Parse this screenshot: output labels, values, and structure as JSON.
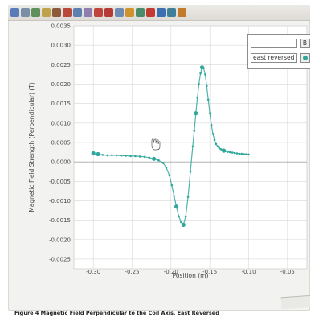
{
  "toolbar": {
    "buttons": [
      {
        "icon": "file-icon",
        "color": "#5b7bb8"
      },
      {
        "icon": "table-icon",
        "color": "#7a8fa6"
      },
      {
        "icon": "graph-icon",
        "color": "#5f8f5a"
      },
      {
        "icon": "sensor-icon",
        "color": "#c0a24a"
      },
      {
        "icon": "sigma-icon",
        "color": "#8a5a3a"
      },
      {
        "icon": "triangle-icon",
        "color": "#b8493b"
      },
      {
        "icon": "scale-icon",
        "color": "#5c7fb0"
      },
      {
        "icon": "zoom-icon",
        "color": "#8f7db0"
      },
      {
        "icon": "cursor-icon",
        "color": "#c0443b"
      },
      {
        "icon": "text-a-icon",
        "color": "#b53a34"
      },
      {
        "icon": "curve-fit-icon",
        "color": "#6c8bb5"
      },
      {
        "icon": "tangent-icon",
        "color": "#d0922d"
      },
      {
        "icon": "integral-icon",
        "color": "#4c8b6a"
      },
      {
        "icon": "delete-icon",
        "color": "#c23b32"
      },
      {
        "icon": "stats-icon",
        "color": "#3c6fb0"
      },
      {
        "icon": "grid-icon",
        "color": "#3f7f9a"
      },
      {
        "icon": "settings-icon",
        "color": "#c47a2b"
      }
    ]
  },
  "legend": {
    "search_value": "",
    "search_button": "B",
    "series_label": "east reversed",
    "series_color": "#2fa79c"
  },
  "caption": "Figure 4 Magnetic Field Perpendicular to the Coil Axis. East Reversed",
  "chart_data": {
    "type": "scatter",
    "title": "",
    "xlabel": "Position (m)",
    "ylabel": "Magnetic Field Strength (Perpendicular) (T)",
    "xlim": [
      -0.325,
      -0.025
    ],
    "ylim": [
      -0.00275,
      0.0035
    ],
    "x_ticks": [
      "-0.30",
      "-0.25",
      "-0.20",
      "-0.15",
      "-0.10",
      "-0.05"
    ],
    "y_ticks": [
      "0.0035",
      "0.0030",
      "0.0025",
      "0.0020",
      "0.0015",
      "0.0010",
      "0.0005",
      "0.0000",
      "-0.0005",
      "-0.0010",
      "-0.0015",
      "-0.0020",
      "-0.0025"
    ],
    "grid": true,
    "legend_position": "top-right",
    "series": [
      {
        "name": "east reversed",
        "color": "#2fa79c",
        "x": [
          -0.3,
          -0.294,
          -0.288,
          -0.282,
          -0.276,
          -0.27,
          -0.264,
          -0.258,
          -0.252,
          -0.246,
          -0.24,
          -0.234,
          -0.228,
          -0.222,
          -0.216,
          -0.21,
          -0.206,
          -0.202,
          -0.199,
          -0.196,
          -0.193,
          -0.19,
          -0.187,
          -0.184,
          -0.181,
          -0.178,
          -0.175,
          -0.172,
          -0.17,
          -0.168,
          -0.166,
          -0.164,
          -0.162,
          -0.16,
          -0.158,
          -0.156,
          -0.154,
          -0.152,
          -0.15,
          -0.148,
          -0.146,
          -0.144,
          -0.142,
          -0.14,
          -0.138,
          -0.136,
          -0.134,
          -0.132,
          -0.13,
          -0.127,
          -0.124,
          -0.121,
          -0.118,
          -0.115,
          -0.112,
          -0.109,
          -0.106,
          -0.103,
          -0.1
        ],
        "y": [
          0.00022,
          0.0002,
          0.00018,
          0.00017,
          0.00017,
          0.00017,
          0.00016,
          0.00016,
          0.00015,
          0.00015,
          0.00014,
          0.00013,
          0.00011,
          8e-05,
          4e-05,
          -3e-05,
          -0.00015,
          -0.00035,
          -0.0006,
          -0.00088,
          -0.00115,
          -0.0014,
          -0.00155,
          -0.00162,
          -0.0014,
          -0.0009,
          -0.00025,
          0.0004,
          0.0008,
          0.00125,
          0.00165,
          0.002,
          0.00228,
          0.00243,
          0.00241,
          0.00225,
          0.00195,
          0.0016,
          0.00125,
          0.00095,
          0.00072,
          0.00056,
          0.00046,
          0.0004,
          0.00036,
          0.00033,
          0.00031,
          0.00029,
          0.00028,
          0.00026,
          0.00025,
          0.00024,
          0.00023,
          0.00022,
          0.00021,
          0.00021,
          0.0002,
          0.0002,
          0.00019
        ],
        "highlighted_x": [
          -0.3,
          -0.294,
          -0.222,
          -0.193,
          -0.184,
          -0.168,
          -0.16,
          -0.132
        ]
      }
    ]
  }
}
